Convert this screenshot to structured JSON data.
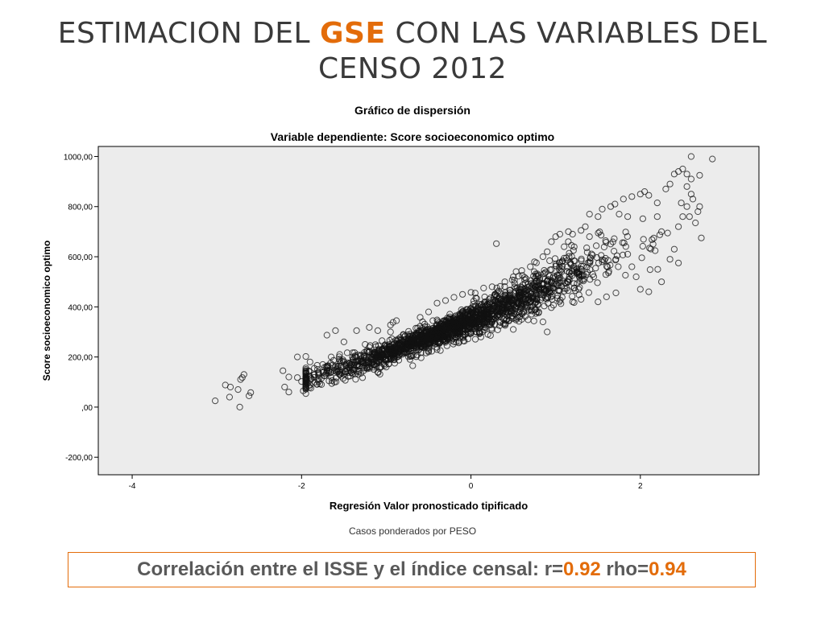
{
  "slide": {
    "title_part1": "ESTIMACION DEL ",
    "title_accent": "GSE",
    "title_part2": " CON LAS VARIABLES DEL",
    "title_line2": "CENSO 2012",
    "accent_color": "#e36c0a"
  },
  "footnote": "Casos ponderados por PESO",
  "correlation": {
    "prefix": "Correlación entre el ISSE y el índice censal:  r=",
    "r_value": "0.92",
    "rho_label": " rho=",
    "rho_value": "0.94"
  },
  "chart_data": {
    "type": "scatter",
    "title": "Gráfico de dispersión",
    "subtitle": "Variable dependiente: Score socioeconomico optimo",
    "xlabel": "Regresión Valor pronosticado tipificado",
    "ylabel": "Score socioeconomico optimo",
    "xlim": [
      -4.4,
      3.4
    ],
    "ylim": [
      -270,
      1040
    ],
    "x_ticks": [
      -4,
      -2,
      0,
      2
    ],
    "x_tick_labels": [
      "-4",
      "-2",
      "0",
      "2"
    ],
    "y_ticks": [
      1000,
      800,
      600,
      400,
      200,
      0,
      -200
    ],
    "y_tick_labels": [
      "1000,00",
      "800,00",
      "600,00",
      "400,00",
      "200,00",
      ",00",
      "-200,00"
    ],
    "grid": false,
    "legend": "none",
    "marker": "open-circle",
    "plot_background": "#ececec",
    "point_count_approx": 2200,
    "points": [
      [
        -3.02,
        25
      ],
      [
        -2.9,
        88
      ],
      [
        -2.84,
        80
      ],
      [
        -2.85,
        40
      ],
      [
        -2.75,
        70
      ],
      [
        -2.72,
        110
      ],
      [
        -2.7,
        118
      ],
      [
        -2.68,
        130
      ],
      [
        -2.73,
        0
      ],
      [
        -2.62,
        45
      ],
      [
        -2.6,
        58
      ],
      [
        -2.2,
        80
      ],
      [
        -2.15,
        60
      ],
      [
        -2.15,
        120
      ],
      [
        -2.22,
        145
      ],
      [
        -2.05,
        118
      ],
      [
        -2.0,
        102
      ],
      [
        -1.98,
        65
      ],
      [
        -1.9,
        180
      ],
      [
        -1.85,
        155
      ],
      [
        -2.05,
        200
      ],
      [
        -1.95,
        202
      ],
      [
        -1.7,
        287
      ],
      [
        -1.6,
        305
      ],
      [
        -1.5,
        260
      ],
      [
        -1.35,
        305
      ],
      [
        -1.2,
        318
      ],
      [
        -1.1,
        305
      ],
      [
        -0.95,
        328
      ],
      [
        -0.88,
        345
      ],
      [
        -0.95,
        300
      ],
      [
        -0.92,
        338
      ],
      [
        -0.6,
        358
      ],
      [
        -0.5,
        380
      ],
      [
        -0.4,
        415
      ],
      [
        -0.3,
        425
      ],
      [
        -0.2,
        438
      ],
      [
        -0.1,
        450
      ],
      [
        0.0,
        458
      ],
      [
        0.05,
        455
      ],
      [
        0.15,
        475
      ],
      [
        0.25,
        480
      ],
      [
        0.3,
        652
      ],
      [
        0.4,
        500
      ],
      [
        0.5,
        520
      ],
      [
        0.6,
        545
      ],
      [
        0.7,
        560
      ],
      [
        0.75,
        580
      ],
      [
        0.85,
        600
      ],
      [
        0.9,
        620
      ],
      [
        0.95,
        660
      ],
      [
        1.0,
        680
      ],
      [
        1.05,
        690
      ],
      [
        1.1,
        640
      ],
      [
        1.15,
        700
      ],
      [
        1.2,
        690
      ],
      [
        1.3,
        705
      ],
      [
        1.35,
        720
      ],
      [
        1.4,
        680
      ],
      [
        1.4,
        770
      ],
      [
        1.5,
        760
      ],
      [
        1.55,
        790
      ],
      [
        1.65,
        800
      ],
      [
        1.7,
        810
      ],
      [
        1.75,
        770
      ],
      [
        1.8,
        830
      ],
      [
        1.85,
        760
      ],
      [
        1.9,
        840
      ],
      [
        2.0,
        850
      ],
      [
        2.05,
        860
      ],
      [
        2.1,
        845
      ],
      [
        2.2,
        815
      ],
      [
        2.3,
        870
      ],
      [
        2.35,
        890
      ],
      [
        2.4,
        930
      ],
      [
        2.45,
        940
      ],
      [
        2.5,
        950
      ],
      [
        2.55,
        930
      ],
      [
        2.6,
        910
      ],
      [
        2.6,
        850
      ],
      [
        2.62,
        830
      ],
      [
        2.55,
        880
      ],
      [
        2.6,
        1000
      ],
      [
        2.85,
        990
      ],
      [
        2.7,
        925
      ],
      [
        2.68,
        780
      ],
      [
        2.58,
        760
      ],
      [
        2.65,
        735
      ],
      [
        2.7,
        800
      ],
      [
        2.72,
        675
      ],
      [
        2.4,
        630
      ],
      [
        2.45,
        575
      ],
      [
        2.35,
        590
      ],
      [
        2.25,
        500
      ],
      [
        2.1,
        460
      ],
      [
        2.0,
        470
      ],
      [
        1.95,
        520
      ],
      [
        1.9,
        560
      ],
      [
        1.6,
        440
      ],
      [
        1.5,
        420
      ],
      [
        1.45,
        520
      ],
      [
        1.3,
        430
      ],
      [
        1.2,
        420
      ],
      [
        1.15,
        510
      ],
      [
        0.9,
        300
      ],
      [
        0.85,
        340
      ],
      [
        0.8,
        380
      ],
      [
        0.6,
        350
      ],
      [
        0.5,
        310
      ],
      [
        0.4,
        330
      ],
      [
        0.2,
        290
      ],
      [
        0.1,
        300
      ],
      [
        -0.1,
        280
      ],
      [
        -0.2,
        260
      ],
      [
        -0.4,
        230
      ],
      [
        -0.5,
        220
      ],
      [
        -0.7,
        205
      ],
      [
        -0.9,
        175
      ],
      [
        -1.0,
        160
      ],
      [
        -1.1,
        140
      ],
      [
        -1.3,
        135
      ],
      [
        -1.5,
        130
      ],
      [
        -1.7,
        145
      ],
      [
        -1.8,
        140
      ],
      [
        -1.9,
        120
      ],
      [
        -1.75,
        170
      ],
      [
        -1.65,
        200
      ],
      [
        -1.55,
        210
      ],
      [
        -1.4,
        200
      ],
      [
        -1.25,
        250
      ],
      [
        -1.05,
        265
      ],
      [
        -0.8,
        290
      ],
      [
        -0.65,
        315
      ],
      [
        -0.45,
        345
      ],
      [
        -0.25,
        360
      ],
      [
        -0.05,
        380
      ],
      [
        0.1,
        410
      ],
      [
        0.35,
        425
      ],
      [
        0.55,
        440
      ],
      [
        0.75,
        470
      ],
      [
        0.95,
        500
      ],
      [
        1.25,
        540
      ],
      [
        1.55,
        580
      ],
      [
        1.85,
        610
      ],
      [
        2.15,
        650
      ],
      [
        2.25,
        700
      ],
      [
        2.45,
        720
      ],
      [
        2.5,
        760
      ],
      [
        2.55,
        800
      ],
      [
        2.2,
        760
      ]
    ]
  }
}
